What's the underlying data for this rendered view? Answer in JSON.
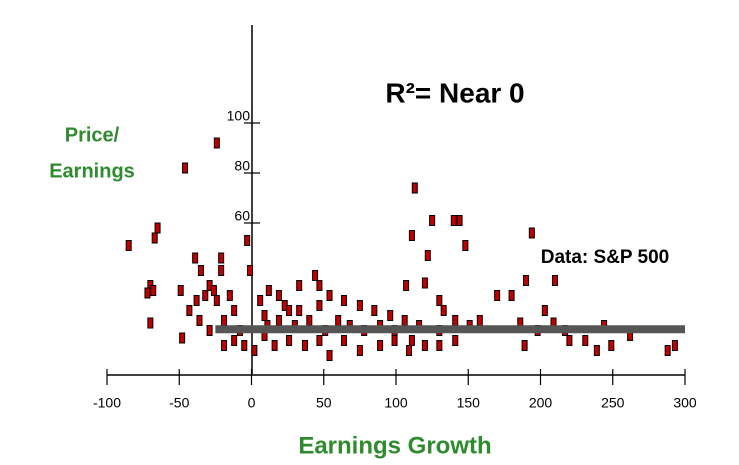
{
  "chart_data": {
    "type": "scatter",
    "annotation": "R²= Near 0",
    "source_note": "Data: S&P 500",
    "ylabel": [
      "Price/",
      "Earnings"
    ],
    "xlabel": "Earnings Growth",
    "color": "#c00000",
    "xlim": [
      -100,
      300
    ],
    "xticks": [
      -100,
      -50,
      0,
      50,
      100,
      150,
      200,
      250,
      300
    ],
    "ylim": [
      0,
      140
    ],
    "yticks": [
      60,
      80,
      100
    ],
    "x": [
      -46,
      -24,
      -85,
      -65,
      -67,
      -70,
      -72,
      -68,
      -70,
      -49,
      -48,
      -39,
      -35,
      -38,
      -43,
      -32,
      -29,
      -26,
      -21,
      -21,
      -24,
      -15,
      -12,
      -3,
      -1,
      -8,
      -19,
      -36,
      -29,
      113,
      111,
      125,
      140,
      144,
      148,
      122,
      120,
      107,
      194,
      190,
      170,
      180,
      210,
      203,
      186,
      198,
      189,
      217,
      220,
      231,
      239,
      244,
      249,
      262,
      288,
      293,
      209,
      6,
      12,
      23,
      33,
      44,
      47,
      54,
      64,
      75,
      85,
      96,
      106,
      116,
      130,
      133,
      141,
      151,
      158,
      9,
      16,
      26,
      37,
      47,
      54,
      64,
      75,
      89,
      99,
      109,
      120,
      130,
      141,
      -12,
      -19,
      -5,
      2,
      11,
      19,
      30,
      40,
      51,
      60,
      68,
      78,
      89,
      99,
      111,
      130,
      33,
      19,
      47,
      26,
      9
    ],
    "y": [
      82,
      92,
      51,
      58,
      54,
      35,
      32,
      33,
      20,
      33,
      14,
      46,
      41,
      29,
      25,
      31,
      35,
      33,
      46,
      41,
      29,
      31,
      25,
      53,
      41,
      17,
      21,
      21,
      17,
      74,
      55,
      61,
      61,
      61,
      51,
      47,
      36,
      35,
      56,
      37,
      31,
      31,
      37,
      25,
      20,
      17,
      11,
      17,
      13,
      13,
      9,
      19,
      11,
      15,
      9,
      11,
      20,
      29,
      33,
      27,
      35,
      39,
      35,
      31,
      29,
      27,
      25,
      23,
      21,
      19,
      29,
      25,
      21,
      19,
      21,
      15,
      11,
      13,
      11,
      13,
      7,
      13,
      9,
      11,
      13,
      9,
      11,
      11,
      13,
      13,
      11,
      11,
      9,
      19,
      21,
      19,
      21,
      17,
      21,
      19,
      17,
      19,
      17,
      13,
      17,
      25,
      31,
      27,
      25,
      23
    ],
    "trend_line": {
      "x": [
        -25,
        300
      ],
      "y": [
        17.5,
        17.5
      ],
      "color": "#555555"
    }
  }
}
